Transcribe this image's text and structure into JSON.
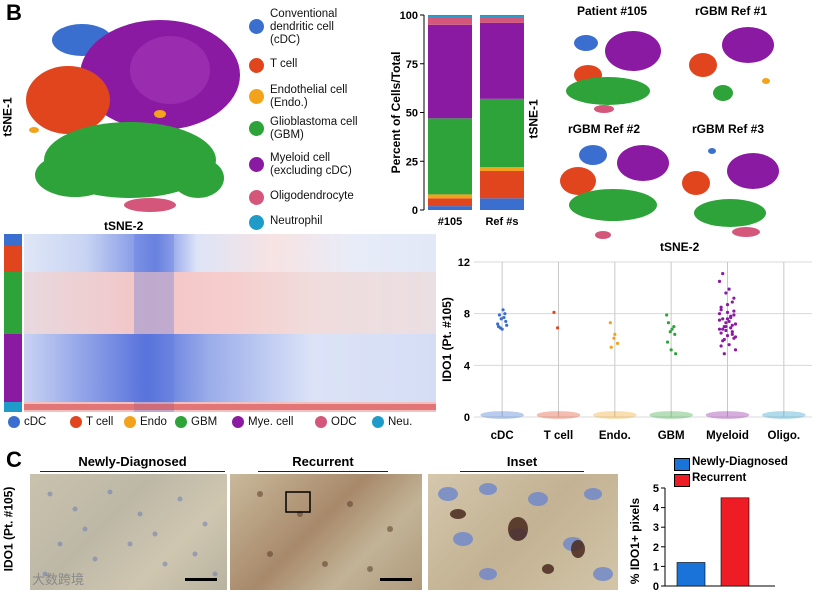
{
  "panel_b": {
    "letter": "B",
    "tsne": {
      "ylabel": "tSNE-1",
      "xlabel": "tSNE-2"
    },
    "legend": [
      {
        "label": "Conventional\ndendritic cell\n(cDC)",
        "color": "#3a6fd0"
      },
      {
        "label": "T cell",
        "color": "#e0451e"
      },
      {
        "label": "Endothelial cell\n(Endo.)",
        "color": "#f3a21c"
      },
      {
        "label": "Glioblastoma cell\n(GBM)",
        "color": "#2ea33a"
      },
      {
        "label": "Myeloid cell\n(excluding cDC)",
        "color": "#8b1aa3"
      },
      {
        "label": "Oligodendrocyte",
        "color": "#d4567a"
      },
      {
        "label": "Neutrophil",
        "color": "#1e9bc9"
      }
    ],
    "small_tsne": {
      "ylabel": "tSNE-1",
      "xlabel": "tSNE-2",
      "titles": [
        "Patient #105",
        "rGBM Ref #1",
        "rGBM Ref #2",
        "rGBM Ref #3"
      ]
    },
    "heatmap_legend": [
      {
        "label": "cDC",
        "color": "#3a6fd0"
      },
      {
        "label": "T cell",
        "color": "#e0451e"
      },
      {
        "label": "Endo",
        "color": "#f3a21c"
      },
      {
        "label": "GBM",
        "color": "#2ea33a"
      },
      {
        "label": "Mye. cell",
        "color": "#8b1aa3"
      },
      {
        "label": "ODC",
        "color": "#d4567a"
      },
      {
        "label": "Neu.",
        "color": "#1e9bc9"
      }
    ]
  },
  "panel_c": {
    "letter": "C",
    "ylabel": "IDO1 (Pt. #105)",
    "photo_titles": [
      "Newly-Diagnosed",
      "Recurrent",
      "Inset"
    ],
    "watermark": "大数跨境"
  },
  "chart_data": [
    {
      "type": "bar",
      "stacked": true,
      "categories": [
        "#105",
        "Ref #s"
      ],
      "ylabel": "Percent of Cells/Total",
      "ylim": [
        0,
        100
      ],
      "yticks": [
        0,
        25,
        50,
        75,
        100
      ],
      "series": [
        {
          "name": "cDC",
          "color": "#3a6fd0",
          "values": [
            2,
            6
          ]
        },
        {
          "name": "T cell",
          "color": "#e0451e",
          "values": [
            4,
            14
          ]
        },
        {
          "name": "Endo.",
          "color": "#f3a21c",
          "values": [
            2,
            2
          ]
        },
        {
          "name": "GBM",
          "color": "#2ea33a",
          "values": [
            39,
            35
          ]
        },
        {
          "name": "Myeloid",
          "color": "#8b1aa3",
          "values": [
            48,
            39
          ]
        },
        {
          "name": "Oligo.",
          "color": "#d4567a",
          "values": [
            4,
            3
          ]
        },
        {
          "name": "Neu.",
          "color": "#1e9bc9",
          "values": [
            1,
            1
          ]
        }
      ]
    },
    {
      "type": "scatter",
      "ylabel": "IDO1 (Pt. #105)",
      "ylim": [
        0,
        12
      ],
      "yticks": [
        0,
        4,
        8,
        12
      ],
      "categories": [
        "cDC",
        "T cell",
        "Endo.",
        "GBM",
        "Myeloid",
        "Oligo."
      ],
      "colors": [
        "#3a6fd0",
        "#e0451e",
        "#f3a21c",
        "#2ea33a",
        "#8b1aa3",
        "#1e9bc9"
      ],
      "points": [
        [
          7.2,
          7.6,
          8.0,
          7.0,
          6.8,
          7.4,
          7.9,
          8.3,
          7.1,
          6.9,
          7.7
        ],
        [
          8.1,
          6.9
        ],
        [
          7.3,
          6.1,
          5.7,
          5.4,
          6.4
        ],
        [
          7.9,
          6.6,
          7.0,
          5.8,
          5.2,
          6.4,
          7.3,
          6.8,
          4.9
        ],
        [
          10.5,
          9.6,
          8.9,
          8.3,
          8.1,
          7.9,
          7.6,
          7.4,
          7.2,
          7.0,
          6.9,
          6.8,
          6.7,
          6.6,
          6.5,
          6.3,
          6.1,
          5.9,
          5.6,
          5.2,
          4.9,
          7.7,
          7.5,
          7.3,
          7.1,
          8.5,
          8.7,
          9.2,
          11.1,
          9.9,
          6.2,
          6.0,
          7.8,
          8.0,
          7.0,
          6.4,
          5.5,
          7.6,
          8.2,
          6.8
        ],
        []
      ]
    },
    {
      "type": "bar",
      "categories": [
        "Newly-Diagnosed",
        "Recurrent"
      ],
      "values": [
        1.2,
        4.5
      ],
      "colors": [
        "#1a73d9",
        "#ee1c25"
      ],
      "ylabel": "% IDO1+ pixels",
      "ylim": [
        0,
        5
      ],
      "yticks": [
        0,
        1,
        2,
        3,
        4,
        5
      ]
    }
  ]
}
